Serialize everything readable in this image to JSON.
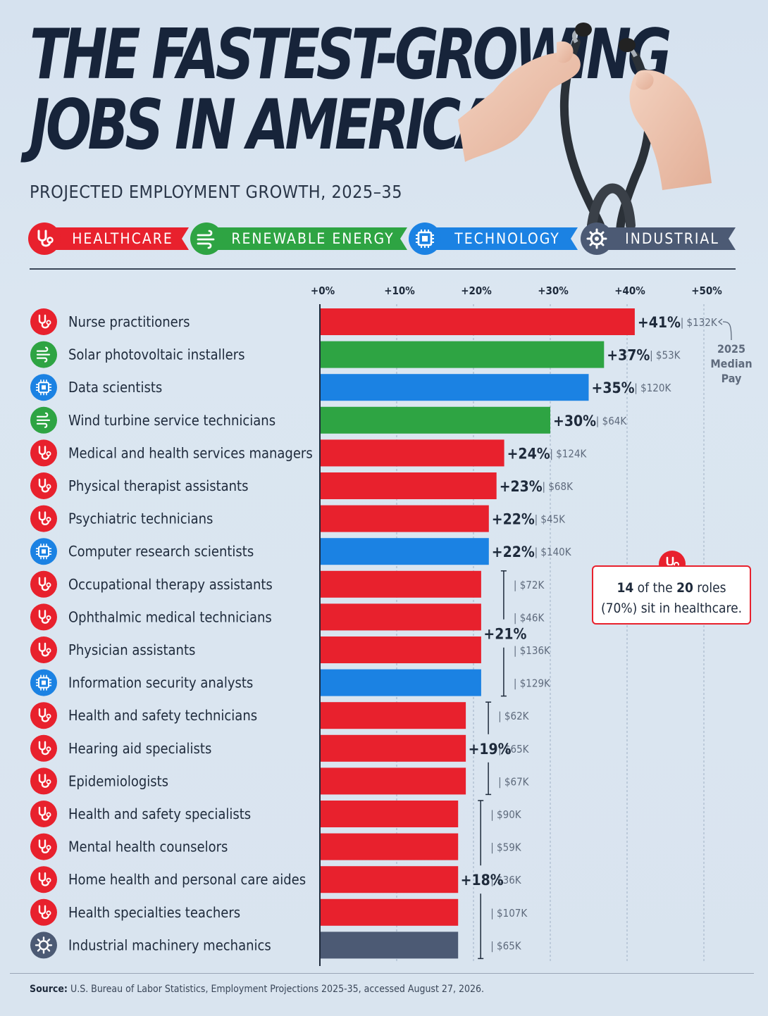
{
  "title": {
    "line1": "THE FASTEST-GROWING",
    "line2": "JOBS IN AMERICA"
  },
  "subtitle": "PROJECTED EMPLOYMENT GROWTH, 2025–35",
  "legend": [
    {
      "key": "healthcare",
      "label": "HEALTHCARE",
      "color": "#e8212d",
      "icon": "stethoscope-icon"
    },
    {
      "key": "renewable",
      "label": "RENEWABLE ENERGY",
      "color": "#2ea443",
      "icon": "wind-icon"
    },
    {
      "key": "technology",
      "label": "TECHNOLOGY",
      "color": "#1b82e3",
      "icon": "chip-icon"
    },
    {
      "key": "industrial",
      "label": "INDUSTRIAL",
      "color": "#4c5a74",
      "icon": "gear-icon"
    }
  ],
  "chart_data": {
    "type": "bar",
    "orientation": "horizontal",
    "xlim": [
      0,
      50
    ],
    "x_ticks": [
      "+0%",
      "+10%",
      "+20%",
      "+30%",
      "+40%",
      "+50%"
    ],
    "pay_annotation": "2025 Median Pay",
    "rows": [
      {
        "name": "Nurse practitioners",
        "category": "healthcare",
        "growth": 41,
        "label": "+41%",
        "pay": "$132K"
      },
      {
        "name": "Solar photovoltaic installers",
        "category": "renewable",
        "growth": 37,
        "label": "+37%",
        "pay": "$53K"
      },
      {
        "name": "Data scientists",
        "category": "technology",
        "growth": 35,
        "label": "+35%",
        "pay": "$120K"
      },
      {
        "name": "Wind turbine service technicians",
        "category": "renewable",
        "growth": 30,
        "label": "+30%",
        "pay": "$64K"
      },
      {
        "name": "Medical and health services managers",
        "category": "healthcare",
        "growth": 24,
        "label": "+24%",
        "pay": "$124K"
      },
      {
        "name": "Physical therapist assistants",
        "category": "healthcare",
        "growth": 23,
        "label": "+23%",
        "pay": "$68K"
      },
      {
        "name": "Psychiatric technicians",
        "category": "healthcare",
        "growth": 22,
        "label": "+22%",
        "pay": "$45K"
      },
      {
        "name": "Computer research scientists",
        "category": "technology",
        "growth": 22,
        "label": "+22%",
        "pay": "$140K"
      },
      {
        "name": "Occupational therapy assistants",
        "category": "healthcare",
        "growth": 21,
        "pay": "$72K"
      },
      {
        "name": "Ophthalmic medical technicians",
        "category": "healthcare",
        "growth": 21,
        "pay": "$46K"
      },
      {
        "name": "Physician assistants",
        "category": "healthcare",
        "growth": 21,
        "pay": "$136K"
      },
      {
        "name": "Information security analysts",
        "category": "technology",
        "growth": 21,
        "pay": "$129K"
      },
      {
        "name": "Health and safety technicians",
        "category": "healthcare",
        "growth": 19,
        "pay": "$62K"
      },
      {
        "name": "Hearing aid specialists",
        "category": "healthcare",
        "growth": 19,
        "pay": "$65K"
      },
      {
        "name": "Epidemiologists",
        "category": "healthcare",
        "growth": 19,
        "pay": "$67K"
      },
      {
        "name": "Health and safety specialists",
        "category": "healthcare",
        "growth": 18,
        "pay": "$90K"
      },
      {
        "name": "Mental health counselors",
        "category": "healthcare",
        "growth": 18,
        "pay": "$59K"
      },
      {
        "name": "Home health and personal care aides",
        "category": "healthcare",
        "growth": 18,
        "pay": "$36K"
      },
      {
        "name": "Health specialties teachers",
        "category": "healthcare",
        "growth": 18,
        "pay": "$107K"
      },
      {
        "name": "Industrial machinery mechanics",
        "category": "industrial",
        "growth": 18,
        "pay": "$65K"
      }
    ],
    "groups": [
      {
        "label": "+21%",
        "growth": 21,
        "rows": [
          8,
          11
        ]
      },
      {
        "label": "+19%",
        "growth": 19,
        "rows": [
          12,
          14
        ]
      },
      {
        "label": "+18%",
        "growth": 18,
        "rows": [
          15,
          19
        ]
      }
    ]
  },
  "callout": {
    "count": "14",
    "mid": "of the",
    "total": "20",
    "end": "roles",
    "line2": "(70%) sit in healthcare."
  },
  "source": {
    "label": "Source:",
    "text": "U.S. Bureau of Labor Statistics, Employment Projections 2025-35, accessed August 27, 2026."
  }
}
